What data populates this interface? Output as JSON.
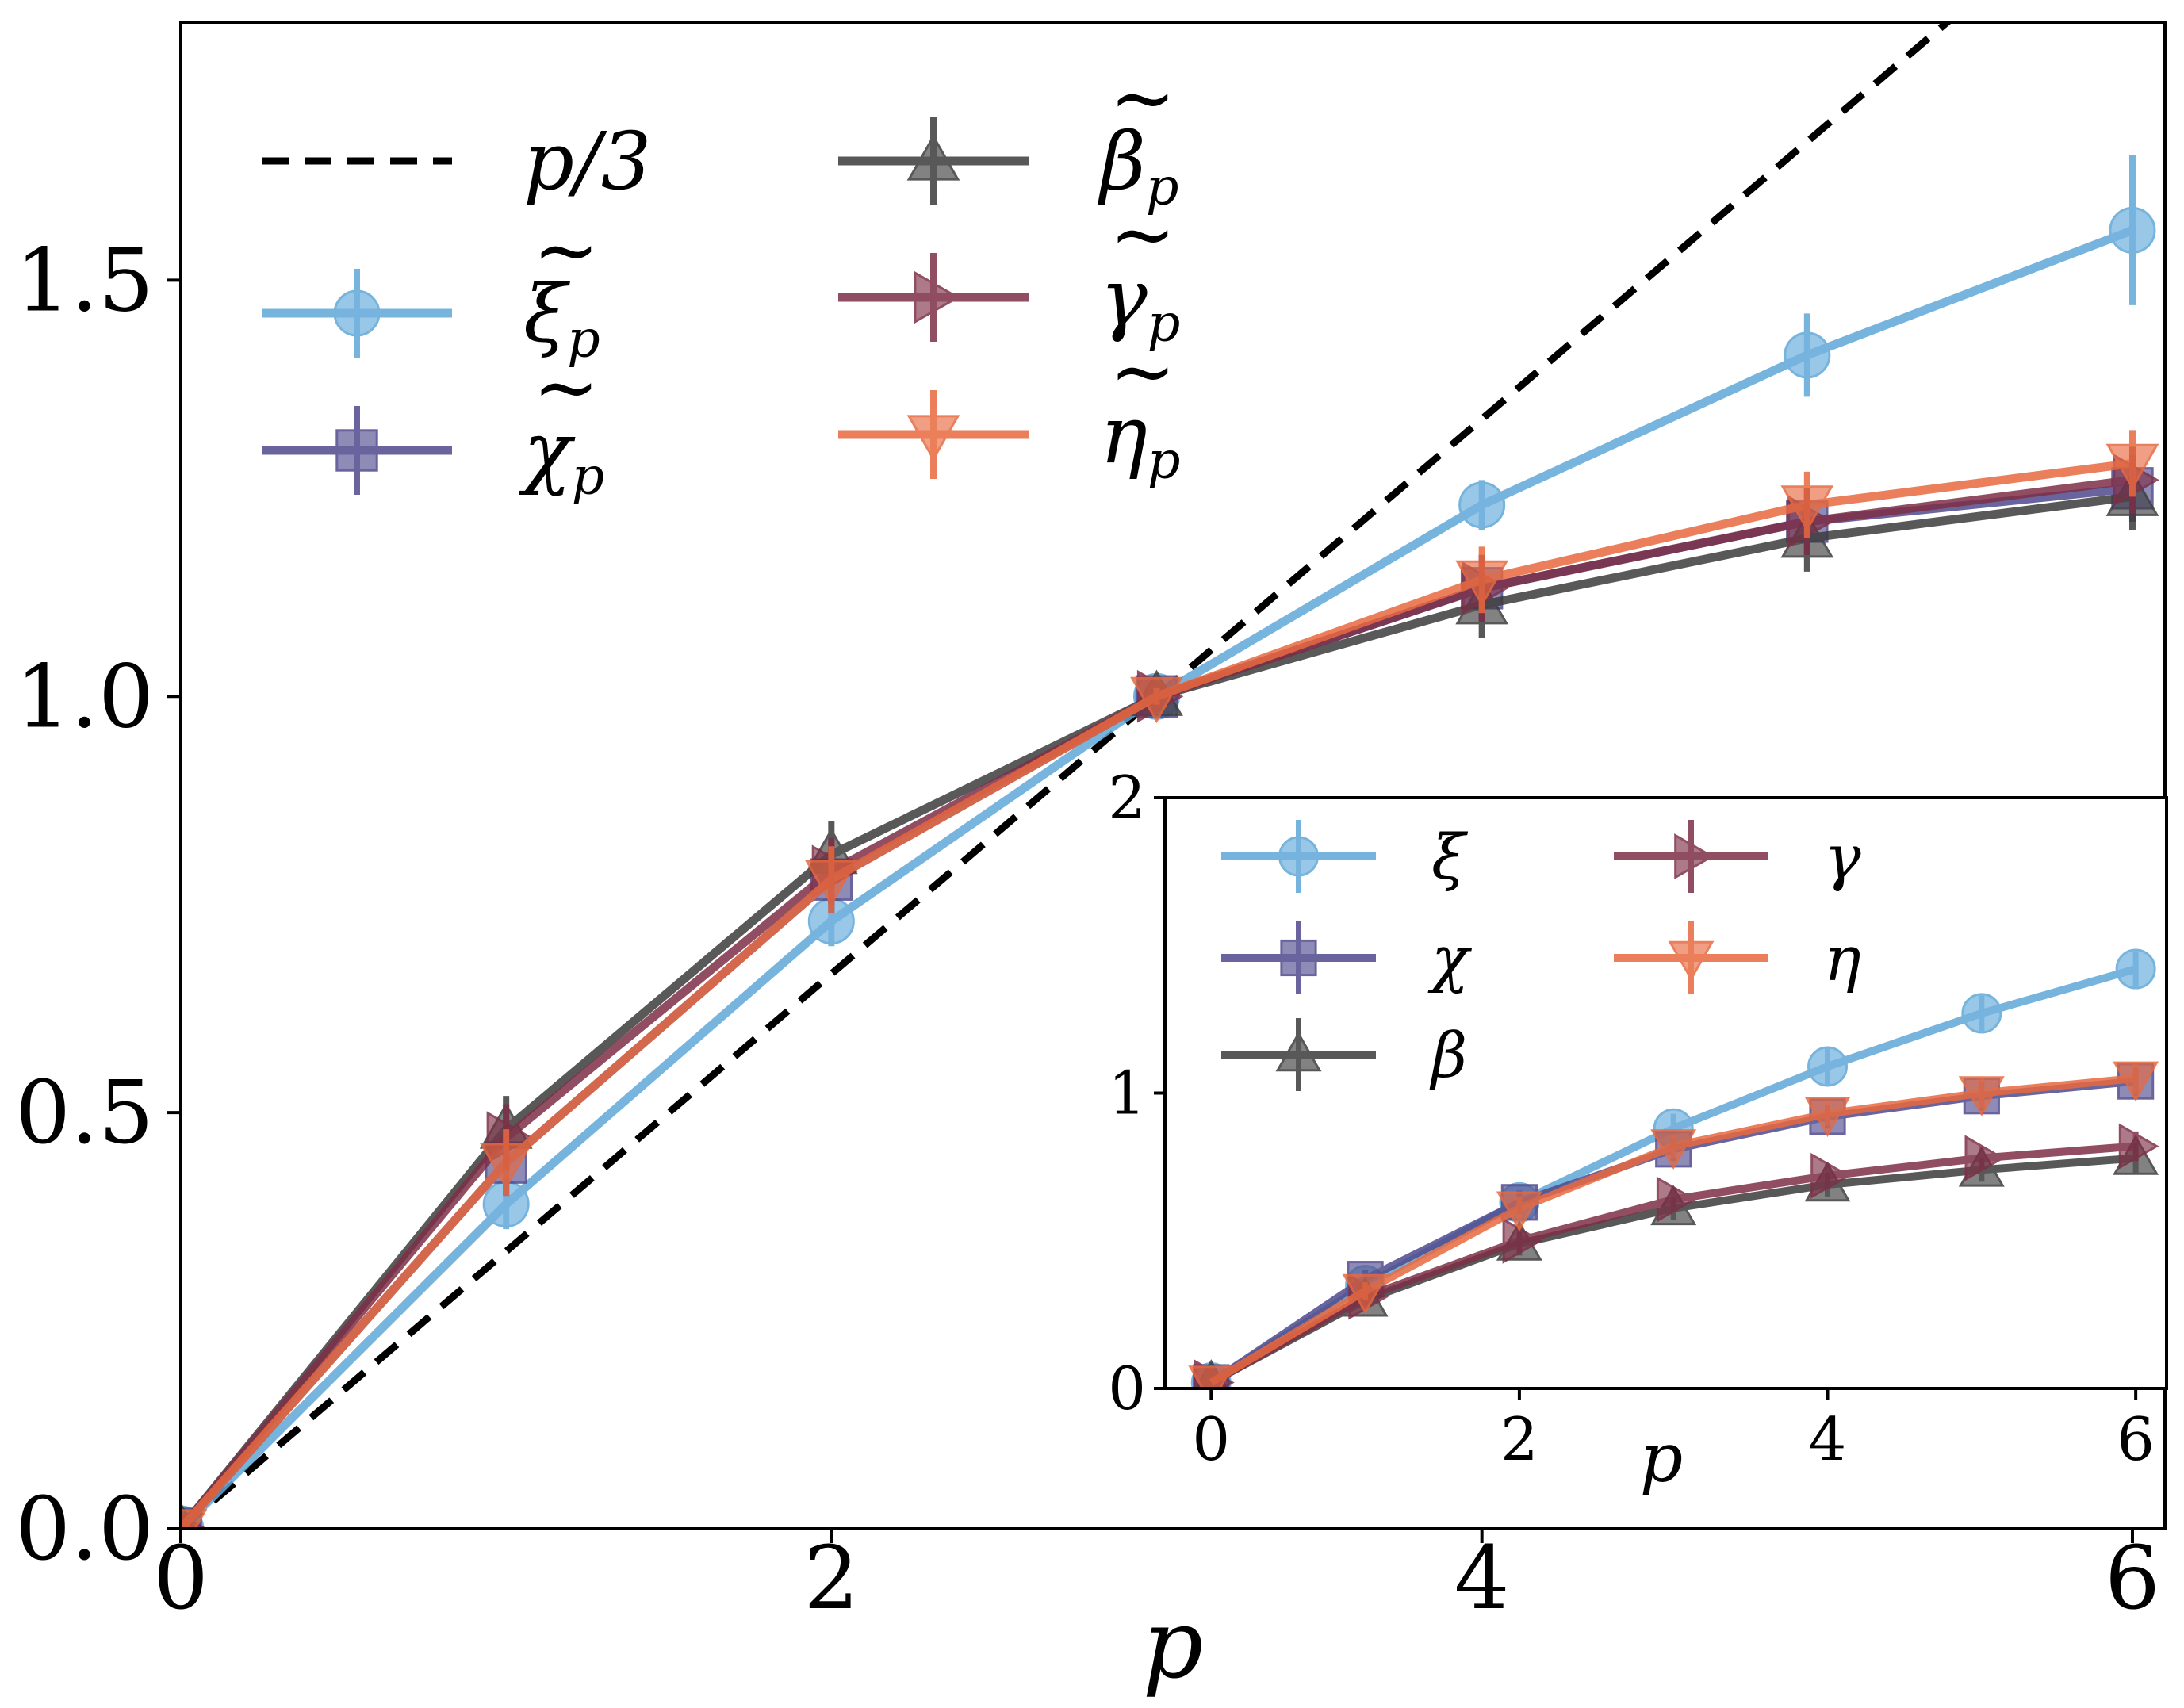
{
  "chart_data": [
    {
      "type": "line",
      "xlabel": "p",
      "ylabel": "",
      "xlim": [
        0,
        6.1
      ],
      "ylim": [
        0,
        1.81
      ],
      "xticks": [
        "0",
        "2",
        "4",
        "6"
      ],
      "yticks": [
        "0.0",
        "0.5",
        "1.0",
        "1.5"
      ],
      "x": [
        0,
        1,
        2,
        3,
        4,
        5,
        6
      ],
      "reference_line": {
        "name": "p/3",
        "slope": 0.3333,
        "color": "#000000",
        "style": "dashed"
      },
      "series": [
        {
          "name": "ξ̃p",
          "base": "ξ",
          "sub": "p",
          "tilde": true,
          "marker": "circle",
          "color": "#5fa8d9",
          "values": [
            0,
            0.39,
            0.73,
            1.0,
            1.23,
            1.41,
            1.56
          ],
          "errors": [
            0,
            0.03,
            0.03,
            0.01,
            0.03,
            0.05,
            0.09
          ]
        },
        {
          "name": "χ̃p",
          "base": "χ",
          "sub": "p",
          "tilde": true,
          "marker": "square",
          "color": "#4f4a8c",
          "values": [
            0,
            0.44,
            0.78,
            1.0,
            1.13,
            1.21,
            1.25
          ],
          "errors": [
            0,
            0.04,
            0.04,
            0.01,
            0.04,
            0.04,
            0.04
          ]
        },
        {
          "name": "β̃p",
          "base": "β",
          "sub": "p",
          "tilde": true,
          "marker": "triangle-up",
          "color": "#3c3c3c",
          "values": [
            0,
            0.48,
            0.81,
            1.0,
            1.11,
            1.19,
            1.24
          ],
          "errors": [
            0,
            0.04,
            0.04,
            0.01,
            0.04,
            0.04,
            0.04
          ]
        },
        {
          "name": "γ̃p",
          "base": "γ",
          "sub": "p",
          "tilde": true,
          "marker": "triangle-right",
          "color": "#7e2f47",
          "values": [
            0,
            0.47,
            0.79,
            1.0,
            1.13,
            1.21,
            1.26
          ],
          "errors": [
            0,
            0.04,
            0.04,
            0.01,
            0.04,
            0.04,
            0.04
          ]
        },
        {
          "name": "η̃p",
          "base": "η",
          "sub": "p",
          "tilde": true,
          "marker": "triangle-down",
          "color": "#e8693f",
          "values": [
            0,
            0.44,
            0.78,
            1.0,
            1.14,
            1.23,
            1.28
          ],
          "errors": [
            0,
            0.04,
            0.04,
            0.01,
            0.04,
            0.04,
            0.04
          ]
        }
      ],
      "legend": "upper-left, two columns"
    },
    {
      "type": "line",
      "inset": true,
      "xlabel": "p",
      "ylabel": "",
      "xlim": [
        -0.3,
        6.2
      ],
      "ylim": [
        0,
        2
      ],
      "xticks": [
        "0",
        "2",
        "4",
        "6"
      ],
      "yticks": [
        "0",
        "1",
        "2"
      ],
      "x": [
        0,
        1,
        2,
        3,
        4,
        5,
        6
      ],
      "series": [
        {
          "name": "ξ",
          "marker": "circle",
          "color": "#5fa8d9",
          "values": [
            0.02,
            0.35,
            0.63,
            0.88,
            1.09,
            1.27,
            1.42
          ],
          "errors": [
            0,
            0.03,
            0.04,
            0.05,
            0.06,
            0.06,
            0.06
          ]
        },
        {
          "name": "χ",
          "marker": "square",
          "color": "#4f4a8c",
          "values": [
            0.02,
            0.37,
            0.63,
            0.81,
            0.92,
            0.99,
            1.04
          ],
          "errors": [
            0,
            0.03,
            0.04,
            0.04,
            0.04,
            0.05,
            0.05
          ]
        },
        {
          "name": "β",
          "marker": "triangle-up",
          "color": "#3c3c3c",
          "values": [
            0.02,
            0.3,
            0.49,
            0.61,
            0.69,
            0.74,
            0.78
          ],
          "errors": [
            0,
            0.03,
            0.04,
            0.04,
            0.04,
            0.04,
            0.05
          ]
        },
        {
          "name": "γ",
          "marker": "triangle-right",
          "color": "#7e2f47",
          "values": [
            0.02,
            0.31,
            0.5,
            0.64,
            0.72,
            0.78,
            0.82
          ],
          "errors": [
            0,
            0.03,
            0.04,
            0.04,
            0.04,
            0.04,
            0.05
          ]
        },
        {
          "name": "η",
          "marker": "triangle-down",
          "color": "#e8693f",
          "values": [
            0.02,
            0.33,
            0.61,
            0.82,
            0.93,
            1.0,
            1.05
          ],
          "errors": [
            0,
            0.03,
            0.04,
            0.04,
            0.04,
            0.05,
            0.05
          ]
        }
      ],
      "legend": "upper-left, two columns"
    }
  ]
}
